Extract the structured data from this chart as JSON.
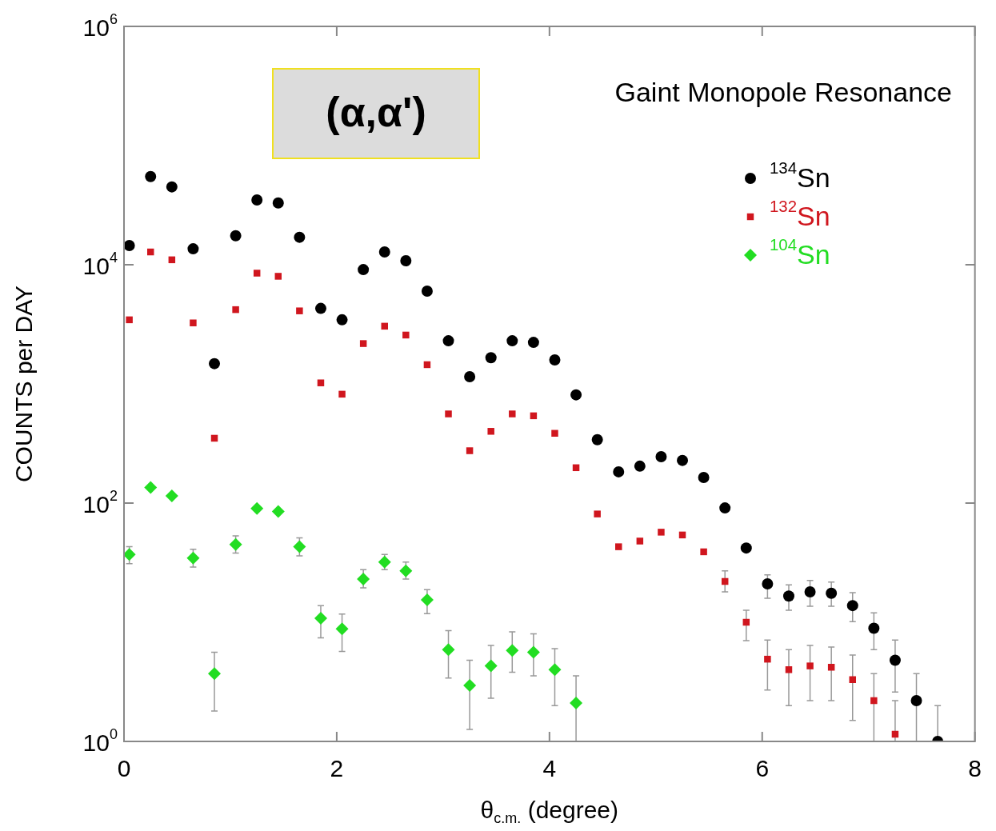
{
  "chart_data": {
    "type": "scatter",
    "xlabel": "θ$_{c.m.}$ (degree)",
    "ylabel": "COUNTS per DAY",
    "log": "y",
    "grid": false,
    "legend": "top right",
    "xlim": [
      0,
      8
    ],
    "xticks": [
      0,
      2,
      4,
      6,
      8
    ],
    "ylim": [
      1,
      1000000
    ],
    "yticks": [
      {
        "value": 1,
        "label": "10$^{0}$"
      },
      {
        "value": 100,
        "label": "10$^{2}$"
      },
      {
        "value": 10000,
        "label": "10$^{4}$"
      },
      {
        "value": 1000000,
        "label": "10$^{6}$"
      }
    ],
    "annotations": [
      "(α,α')",
      "Gaint Monopole Resonance"
    ],
    "x": [
      0.05,
      0.25,
      0.45,
      0.65,
      0.85,
      1.05,
      1.25,
      1.45,
      1.65,
      1.85,
      2.05,
      2.25,
      2.45,
      2.65,
      2.85,
      3.05,
      3.25,
      3.45,
      3.65,
      3.85,
      4.05,
      4.25,
      4.45,
      4.65,
      4.85,
      5.05,
      5.25,
      5.45,
      5.65,
      5.85,
      6.05,
      6.25,
      6.45,
      6.65,
      6.85,
      7.05,
      7.25,
      7.45,
      7.65
    ],
    "series": [
      {
        "name": "$^{134}$Sn",
        "color": "#000000",
        "marker": "circle",
        "values": [
          14500,
          55000,
          45000,
          13600,
          1480,
          17500,
          35000,
          33000,
          17000,
          4300,
          3450,
          9100,
          12800,
          10800,
          6000,
          2300,
          1150,
          1660,
          2300,
          2230,
          1590,
          810,
          340,
          183,
          204,
          245,
          228,
          164,
          91,
          42,
          21,
          16.6,
          18,
          17.5,
          13.8,
          8.9,
          4.8,
          2.2,
          1.0
        ],
        "errors": [
          null,
          null,
          null,
          null,
          null,
          null,
          null,
          null,
          null,
          null,
          null,
          null,
          null,
          null,
          null,
          null,
          null,
          null,
          null,
          null,
          null,
          null,
          null,
          null,
          null,
          null,
          null,
          null,
          null,
          null,
          [
            15.9,
            25
          ],
          [
            12.6,
            20.6
          ],
          [
            13.6,
            22.4
          ],
          [
            13.6,
            21.7
          ],
          [
            10.1,
            17.7
          ],
          [
            5.9,
            12
          ],
          [
            2.6,
            7.1
          ],
          [
            1,
            3.7
          ],
          [
            1,
            2.0
          ]
        ]
      },
      {
        "name": "$^{132}$Sn",
        "color": "#d0161e",
        "marker": "square",
        "values": [
          3450,
          12800,
          11000,
          3250,
          350,
          4200,
          8500,
          8000,
          4100,
          1020,
          820,
          2180,
          3050,
          2570,
          1450,
          560,
          275,
          400,
          560,
          540,
          385,
          198,
          81,
          43,
          48,
          57,
          54,
          39,
          22,
          10,
          4.9,
          4.0,
          4.3,
          4.2,
          3.3,
          2.2,
          1.15,
          null,
          null
        ],
        "errors": [
          null,
          null,
          null,
          null,
          null,
          null,
          null,
          null,
          null,
          null,
          null,
          null,
          null,
          null,
          null,
          null,
          null,
          null,
          null,
          null,
          null,
          null,
          null,
          null,
          null,
          null,
          null,
          null,
          [
            18,
            27
          ],
          [
            7.0,
            12.6
          ],
          [
            2.7,
            7.1
          ],
          [
            2.0,
            5.9
          ],
          [
            2.2,
            6.4
          ],
          [
            2.2,
            6.2
          ],
          [
            1.5,
            5.3
          ],
          [
            1,
            3.7
          ],
          [
            1,
            2.2
          ],
          null,
          null
        ]
      },
      {
        "name": "$^{104}$Sn",
        "color": "#22dd22",
        "marker": "diamond",
        "values": [
          37,
          135,
          115,
          34.5,
          3.7,
          45,
          90,
          85,
          43,
          10.8,
          8.8,
          23,
          32,
          27,
          15.4,
          5.9,
          2.95,
          4.3,
          5.8,
          5.6,
          4.0,
          2.1,
          null,
          null,
          null,
          null,
          null,
          null,
          null,
          null,
          null,
          null,
          null,
          null,
          null,
          null,
          null,
          null,
          null
        ],
        "errors": [
          [
            31,
            43
          ],
          null,
          null,
          [
            29,
            41
          ],
          [
            1.8,
            5.6
          ],
          [
            38,
            53
          ],
          null,
          null,
          [
            36,
            51
          ],
          [
            7.4,
            13.8
          ],
          [
            5.7,
            11.7
          ],
          [
            19.4,
            27.6
          ],
          [
            27.6,
            37
          ],
          [
            23,
            32
          ],
          [
            11.8,
            18.8
          ],
          [
            3.4,
            8.5
          ],
          [
            1.26,
            4.8
          ],
          [
            2.3,
            6.4
          ],
          [
            3.8,
            8.3
          ],
          [
            3.55,
            8.0
          ],
          [
            2.0,
            6.0
          ],
          [
            1.0,
            3.55
          ],
          null,
          null,
          null,
          null,
          null,
          null,
          null,
          null,
          null,
          null,
          null,
          null,
          null,
          null,
          null,
          null,
          null
        ]
      }
    ]
  }
}
